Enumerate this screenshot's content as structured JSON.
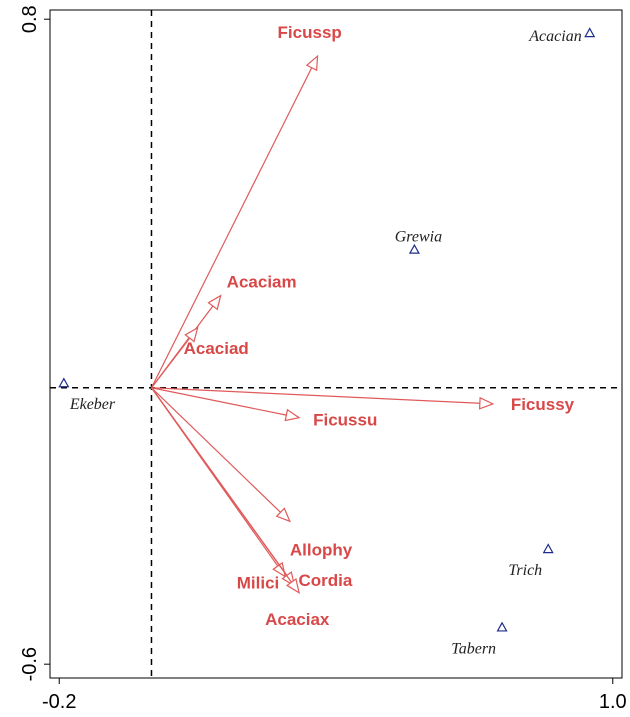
{
  "chart_data": {
    "type": "biplot",
    "title": "",
    "xlabel": "",
    "ylabel": "",
    "xlim": [
      -0.22,
      1.02
    ],
    "ylim": [
      -0.63,
      0.82
    ],
    "x_ticks": [
      {
        "value": -0.2,
        "label": "-0.2"
      },
      {
        "value": 1.0,
        "label": "1.0"
      }
    ],
    "y_ticks": [
      {
        "value": 0.8,
        "label": "0.8"
      },
      {
        "value": -0.6,
        "label": "-0.6"
      }
    ],
    "zero_lines": {
      "x": 0,
      "y": 0,
      "style": "dashed"
    },
    "grid": false,
    "arrows": [
      {
        "name": "Ficussp",
        "x": 0.36,
        "y": 0.72
      },
      {
        "name": "Acaciam",
        "x": 0.15,
        "y": 0.2
      },
      {
        "name": "Acaciad",
        "x": 0.1,
        "y": 0.13
      },
      {
        "name": "Ficussy",
        "x": 0.74,
        "y": -0.035
      },
      {
        "name": "Ficussu",
        "x": 0.32,
        "y": -0.065
      },
      {
        "name": "Allophy",
        "x": 0.3,
        "y": -0.29
      },
      {
        "name": "Milici",
        "x": 0.29,
        "y": -0.41
      },
      {
        "name": "Cordia",
        "x": 0.31,
        "y": -0.43
      },
      {
        "name": "Acaciax",
        "x": 0.32,
        "y": -0.445
      }
    ],
    "points": [
      {
        "name": "Acacian",
        "x": 0.95,
        "y": 0.77
      },
      {
        "name": "Grewia",
        "x": 0.57,
        "y": 0.3
      },
      {
        "name": "Ekeber",
        "x": -0.19,
        "y": 0.01
      },
      {
        "name": "Trich",
        "x": 0.86,
        "y": -0.35
      },
      {
        "name": "Tabern",
        "x": 0.76,
        "y": -0.52
      }
    ]
  },
  "colors": {
    "arrow": "#e05a5a",
    "arrow_label": "#d94848",
    "point": "#1c2d8c",
    "axis": "#000000"
  }
}
